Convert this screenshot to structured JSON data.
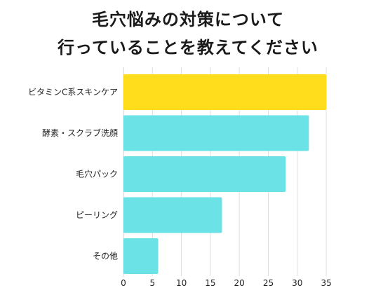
{
  "chart_data": {
    "type": "bar",
    "orientation": "horizontal",
    "title": "毛穴悩みの対策について\n行っていることを教えてください",
    "title_lines": [
      "毛穴悩みの対策について",
      "行っていることを教えてください"
    ],
    "categories": [
      "ビタミンC系スキンケア",
      "酵素・スクラブ洗顔",
      "毛穴パック",
      "ピーリング",
      "その他"
    ],
    "values": [
      35,
      32,
      28,
      17,
      6
    ],
    "colors": [
      "#FFDC1C",
      "#6BE3E6",
      "#6BE3E6",
      "#6BE3E6",
      "#6BE3E6"
    ],
    "xlim": [
      0,
      35
    ],
    "xticks": [
      0,
      5,
      10,
      15,
      20,
      25,
      30,
      35
    ],
    "grid": true,
    "xlabel": "",
    "ylabel": ""
  }
}
